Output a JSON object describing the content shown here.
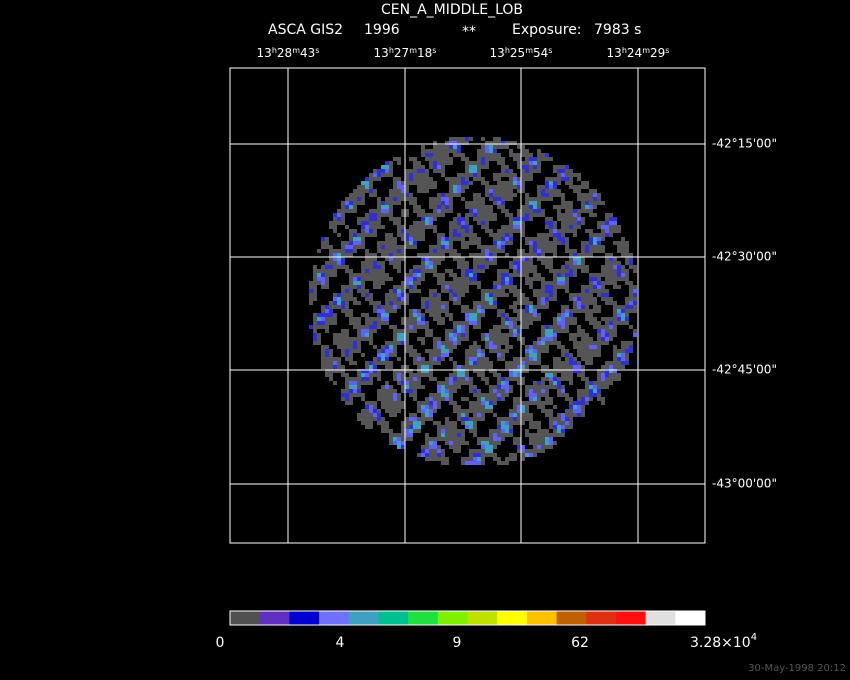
{
  "header": {
    "title": "CEN_A_MIDDLE_LOB",
    "instrument": "ASCA GIS2",
    "year": "1996",
    "marker": "**",
    "exposure_label": "Exposure:",
    "exposure": "7983 s"
  },
  "ra_units": [
    "h",
    "m",
    "s"
  ],
  "ra_labels": [
    [
      "13",
      "28",
      "43"
    ],
    [
      "13",
      "27",
      "18"
    ],
    [
      "13",
      "25",
      "54"
    ],
    [
      "13",
      "24",
      "29"
    ]
  ],
  "dec_labels": [
    "-42°15'00\"",
    "-42°30'00\"",
    "-42°45'00\"",
    "-43°00'00\""
  ],
  "colorbar": {
    "colors": [
      "#505050",
      "#6030c0",
      "#0000d0",
      "#7070ff",
      "#40a0c0",
      "#00c090",
      "#20e040",
      "#80f000",
      "#c0e000",
      "#ffff00",
      "#ffc000",
      "#c06000",
      "#e03010",
      "#ff1010",
      "#e0e0e0",
      "#ffffff"
    ],
    "labels": [
      "0",
      "4",
      "9",
      "62"
    ],
    "max_label": {
      "mantissa": "3.28×10",
      "exponent": "4"
    }
  },
  "footer": {
    "timestamp": "30-May-1998 20:12"
  }
}
